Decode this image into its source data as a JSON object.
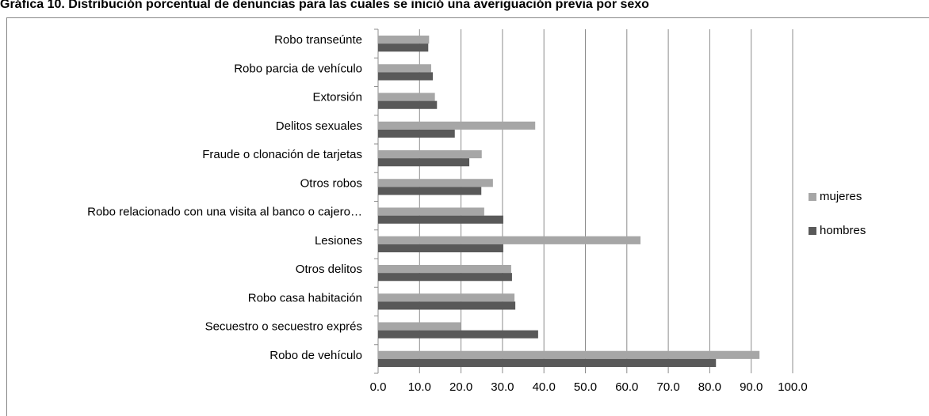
{
  "chart_data": {
    "type": "barh",
    "title": "Gráfica 10. Distribución porcentual de denuncias para las cuales se inició una averiguación previa por sexo",
    "categories": [
      "Robo transeúnte",
      "Robo parcia de vehículo",
      "Extorsión",
      "Delitos sexuales",
      "Fraude o clonación de tarjetas",
      "Otros robos",
      "Robo relacionado con una visita al banco o  cajero…",
      "Lesiones",
      "Otros delitos",
      "Robo casa habitación",
      "Secuestro o secuestro exprés",
      "Robo de vehículo"
    ],
    "series": [
      {
        "name": "mujeres",
        "color": "#a6a6a6",
        "values": [
          12.3,
          12.8,
          13.7,
          37.9,
          25.0,
          27.7,
          25.6,
          63.3,
          32.1,
          32.9,
          19.9,
          92.0
        ]
      },
      {
        "name": "hombres",
        "color": "#595959",
        "values": [
          12.1,
          13.2,
          14.2,
          18.5,
          22.0,
          24.9,
          30.2,
          30.2,
          32.3,
          33.1,
          38.6,
          81.5
        ]
      }
    ],
    "xlim": [
      0,
      100
    ],
    "xticks": [
      {
        "value": 0,
        "label": "0.0"
      },
      {
        "value": 10,
        "label": "10.0"
      },
      {
        "value": 20,
        "label": "20.0"
      },
      {
        "value": 30,
        "label": "30.0"
      },
      {
        "value": 40,
        "label": "40.0"
      },
      {
        "value": 50,
        "label": "50.0"
      },
      {
        "value": 60,
        "label": "60.0"
      },
      {
        "value": 70,
        "label": "70.0"
      },
      {
        "value": 80,
        "label": "80.0"
      },
      {
        "value": 90,
        "label": "90.0"
      },
      {
        "value": 100,
        "label": "100.0"
      }
    ],
    "grid": true,
    "legend": "right"
  }
}
